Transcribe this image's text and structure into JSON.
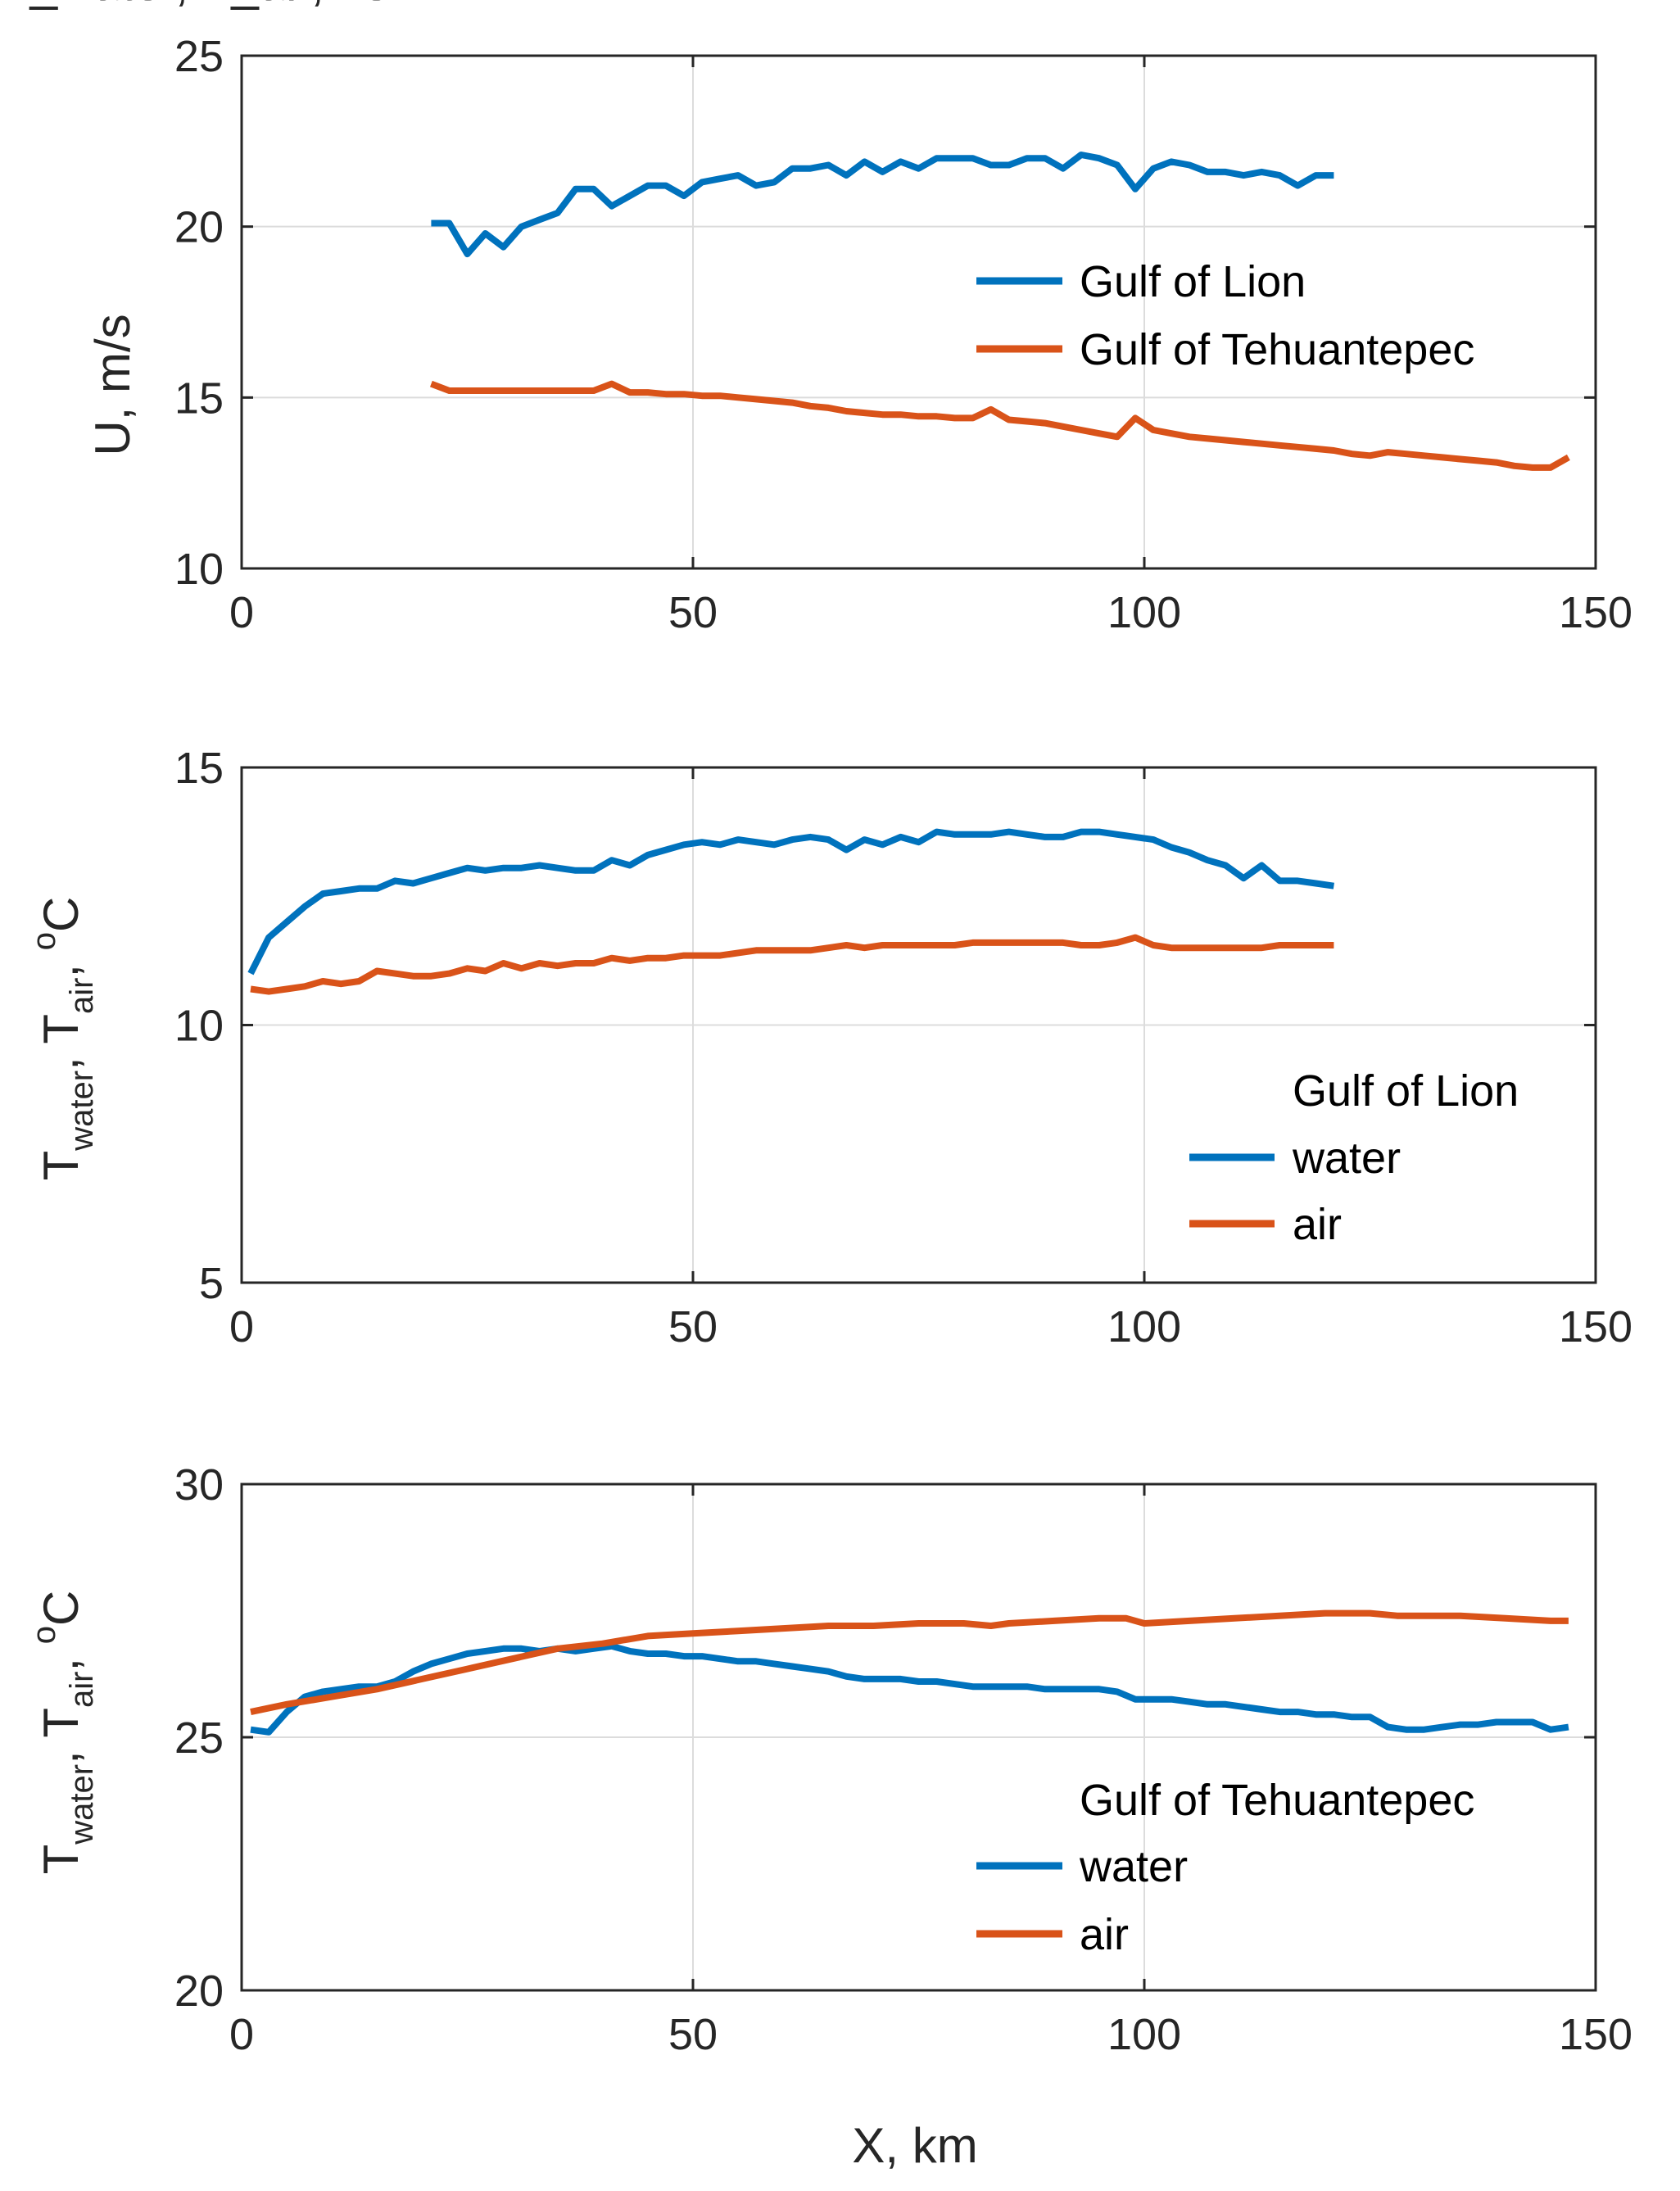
{
  "colors": {
    "water_lion": "#0072bd",
    "tehuantepec_air": "#d95319",
    "axis": "#262626",
    "grid": "#dcdcdc"
  },
  "chart_data": [
    {
      "id": "wind",
      "type": "line",
      "ylabel": "U, m/s",
      "xlabel": "",
      "xlim": [
        0,
        150
      ],
      "ylim": [
        10,
        25
      ],
      "xticks": [
        "0",
        "50",
        "100",
        "150"
      ],
      "yticks": [
        "10",
        "15",
        "20",
        "25"
      ],
      "grid": true,
      "legend_position": "right",
      "legend_title": "",
      "series": [
        {
          "name": "Gulf of Lion",
          "color": "#0072bd",
          "x": [
            21,
            23,
            25,
            27,
            29,
            31,
            33,
            35,
            37,
            39,
            41,
            43,
            45,
            47,
            49,
            51,
            53,
            55,
            57,
            59,
            61,
            63,
            65,
            67,
            69,
            71,
            73,
            75,
            77,
            79,
            81,
            83,
            85,
            87,
            89,
            91,
            93,
            95,
            97,
            99,
            101,
            103,
            105,
            107,
            109,
            111,
            113,
            115,
            117,
            119,
            121
          ],
          "y": [
            20.1,
            20.1,
            19.2,
            19.8,
            19.4,
            20.0,
            20.2,
            20.4,
            21.1,
            21.1,
            20.6,
            20.9,
            21.2,
            21.2,
            20.9,
            21.3,
            21.4,
            21.5,
            21.2,
            21.3,
            21.7,
            21.7,
            21.8,
            21.5,
            21.9,
            21.6,
            21.9,
            21.7,
            22.0,
            22.0,
            22.0,
            21.8,
            21.8,
            22.0,
            22.0,
            21.7,
            22.1,
            22.0,
            21.8,
            21.1,
            21.7,
            21.9,
            21.8,
            21.6,
            21.6,
            21.5,
            21.6,
            21.5,
            21.2,
            21.5,
            21.5
          ]
        },
        {
          "name": "Gulf of Tehuantepec",
          "color": "#d95319",
          "x": [
            21,
            23,
            25,
            27,
            29,
            31,
            33,
            35,
            37,
            39,
            41,
            43,
            45,
            47,
            49,
            51,
            53,
            55,
            57,
            59,
            61,
            63,
            65,
            67,
            69,
            71,
            73,
            75,
            77,
            79,
            81,
            83,
            85,
            87,
            89,
            91,
            93,
            95,
            97,
            99,
            101,
            103,
            105,
            107,
            109,
            111,
            113,
            115,
            117,
            119,
            121,
            123,
            125,
            127,
            129,
            131,
            133,
            135,
            137,
            139,
            141,
            143,
            145,
            147
          ],
          "y": [
            15.4,
            15.2,
            15.2,
            15.2,
            15.2,
            15.2,
            15.2,
            15.2,
            15.2,
            15.2,
            15.4,
            15.15,
            15.15,
            15.1,
            15.1,
            15.05,
            15.05,
            15.0,
            14.95,
            14.9,
            14.85,
            14.75,
            14.7,
            14.6,
            14.55,
            14.5,
            14.5,
            14.45,
            14.45,
            14.4,
            14.4,
            14.65,
            14.35,
            14.3,
            14.25,
            14.15,
            14.05,
            13.95,
            13.85,
            14.4,
            14.05,
            13.95,
            13.85,
            13.8,
            13.75,
            13.7,
            13.65,
            13.6,
            13.55,
            13.5,
            13.45,
            13.35,
            13.3,
            13.4,
            13.35,
            13.3,
            13.25,
            13.2,
            13.15,
            13.1,
            13.0,
            12.95,
            12.95,
            13.25
          ]
        }
      ]
    },
    {
      "id": "lion_temp",
      "type": "line",
      "ylabel": "T_water, T_air, °C",
      "xlabel": "",
      "xlim": [
        0,
        150
      ],
      "ylim": [
        5,
        15
      ],
      "xticks": [
        "0",
        "50",
        "100",
        "150"
      ],
      "yticks": [
        "5",
        "10",
        "15"
      ],
      "grid": true,
      "legend_position": "lower-right",
      "legend_title": "Gulf of Lion",
      "series": [
        {
          "name": "water",
          "color": "#0072bd",
          "x": [
            1,
            3,
            5,
            7,
            9,
            11,
            13,
            15,
            17,
            19,
            21,
            23,
            25,
            27,
            29,
            31,
            33,
            35,
            37,
            39,
            41,
            43,
            45,
            47,
            49,
            51,
            53,
            55,
            57,
            59,
            61,
            63,
            65,
            67,
            69,
            71,
            73,
            75,
            77,
            79,
            81,
            83,
            85,
            87,
            89,
            91,
            93,
            95,
            97,
            99,
            101,
            103,
            105,
            107,
            109,
            111,
            113,
            115,
            117,
            119,
            121
          ],
          "y": [
            11.0,
            11.7,
            12.0,
            12.3,
            12.55,
            12.6,
            12.65,
            12.65,
            12.8,
            12.75,
            12.85,
            12.95,
            13.05,
            13.0,
            13.05,
            13.05,
            13.1,
            13.05,
            13.0,
            13.0,
            13.2,
            13.1,
            13.3,
            13.4,
            13.5,
            13.55,
            13.5,
            13.6,
            13.55,
            13.5,
            13.6,
            13.65,
            13.6,
            13.4,
            13.6,
            13.5,
            13.65,
            13.55,
            13.75,
            13.7,
            13.7,
            13.7,
            13.75,
            13.7,
            13.65,
            13.65,
            13.75,
            13.75,
            13.7,
            13.65,
            13.6,
            13.45,
            13.35,
            13.2,
            13.1,
            12.85,
            13.1,
            12.8,
            12.8,
            12.75,
            12.7
          ]
        },
        {
          "name": "air",
          "color": "#d95319",
          "x": [
            1,
            3,
            5,
            7,
            9,
            11,
            13,
            15,
            17,
            19,
            21,
            23,
            25,
            27,
            29,
            31,
            33,
            35,
            37,
            39,
            41,
            43,
            45,
            47,
            49,
            51,
            53,
            55,
            57,
            59,
            61,
            63,
            65,
            67,
            69,
            71,
            73,
            75,
            77,
            79,
            81,
            83,
            85,
            87,
            89,
            91,
            93,
            95,
            97,
            99,
            101,
            103,
            105,
            107,
            109,
            111,
            113,
            115,
            117,
            119,
            121
          ],
          "y": [
            10.7,
            10.65,
            10.7,
            10.75,
            10.85,
            10.8,
            10.85,
            11.05,
            11.0,
            10.95,
            10.95,
            11.0,
            11.1,
            11.05,
            11.2,
            11.1,
            11.2,
            11.15,
            11.2,
            11.2,
            11.3,
            11.25,
            11.3,
            11.3,
            11.35,
            11.35,
            11.35,
            11.4,
            11.45,
            11.45,
            11.45,
            11.45,
            11.5,
            11.55,
            11.5,
            11.55,
            11.55,
            11.55,
            11.55,
            11.55,
            11.6,
            11.6,
            11.6,
            11.6,
            11.6,
            11.6,
            11.55,
            11.55,
            11.6,
            11.7,
            11.55,
            11.5,
            11.5,
            11.5,
            11.5,
            11.5,
            11.5,
            11.55,
            11.55,
            11.55,
            11.55
          ]
        }
      ]
    },
    {
      "id": "tehuantepec_temp",
      "type": "line",
      "ylabel": "T_water, T_air, °C",
      "xlabel": "X, km",
      "xlim": [
        0,
        150
      ],
      "ylim": [
        20,
        30
      ],
      "xticks": [
        "0",
        "50",
        "100",
        "150"
      ],
      "yticks": [
        "20",
        "25",
        "30"
      ],
      "grid": true,
      "legend_position": "lower-right",
      "legend_title": "Gulf of Tehuantepec",
      "series": [
        {
          "name": "water",
          "color": "#0072bd",
          "x": [
            1,
            3,
            5,
            7,
            9,
            11,
            13,
            15,
            17,
            19,
            21,
            23,
            25,
            27,
            29,
            31,
            33,
            35,
            37,
            39,
            41,
            43,
            45,
            47,
            49,
            51,
            53,
            55,
            57,
            59,
            61,
            63,
            65,
            67,
            69,
            71,
            73,
            75,
            77,
            79,
            81,
            83,
            85,
            87,
            89,
            91,
            93,
            95,
            97,
            99,
            101,
            103,
            105,
            107,
            109,
            111,
            113,
            115,
            117,
            119,
            121,
            123,
            125,
            127,
            129,
            131,
            133,
            135,
            137,
            139,
            141,
            143,
            145,
            147
          ],
          "y": [
            25.15,
            25.1,
            25.5,
            25.8,
            25.9,
            25.95,
            26.0,
            26.0,
            26.1,
            26.3,
            26.45,
            26.55,
            26.65,
            26.7,
            26.75,
            26.75,
            26.7,
            26.75,
            26.7,
            26.75,
            26.8,
            26.7,
            26.65,
            26.65,
            26.6,
            26.6,
            26.55,
            26.5,
            26.5,
            26.45,
            26.4,
            26.35,
            26.3,
            26.2,
            26.15,
            26.15,
            26.15,
            26.1,
            26.1,
            26.05,
            26.0,
            26.0,
            26.0,
            26.0,
            25.95,
            25.95,
            25.95,
            25.95,
            25.9,
            25.75,
            25.75,
            25.75,
            25.7,
            25.65,
            25.65,
            25.6,
            25.55,
            25.5,
            25.5,
            25.45,
            25.45,
            25.4,
            25.4,
            25.2,
            25.15,
            25.15,
            25.2,
            25.25,
            25.25,
            25.3,
            25.3,
            25.3,
            25.15,
            25.2
          ]
        },
        {
          "name": "air",
          "color": "#d95319",
          "x": [
            1,
            5,
            10,
            15,
            20,
            25,
            30,
            35,
            40,
            45,
            50,
            55,
            60,
            65,
            70,
            75,
            80,
            83,
            85,
            90,
            95,
            98,
            100,
            105,
            110,
            115,
            120,
            125,
            128,
            130,
            135,
            140,
            145,
            147
          ],
          "y": [
            25.5,
            25.65,
            25.8,
            25.95,
            26.15,
            26.35,
            26.55,
            26.75,
            26.85,
            27.0,
            27.05,
            27.1,
            27.15,
            27.2,
            27.2,
            27.25,
            27.25,
            27.2,
            27.25,
            27.3,
            27.35,
            27.35,
            27.25,
            27.3,
            27.35,
            27.4,
            27.45,
            27.45,
            27.4,
            27.4,
            27.4,
            27.35,
            27.3,
            27.3
          ]
        }
      ]
    }
  ]
}
